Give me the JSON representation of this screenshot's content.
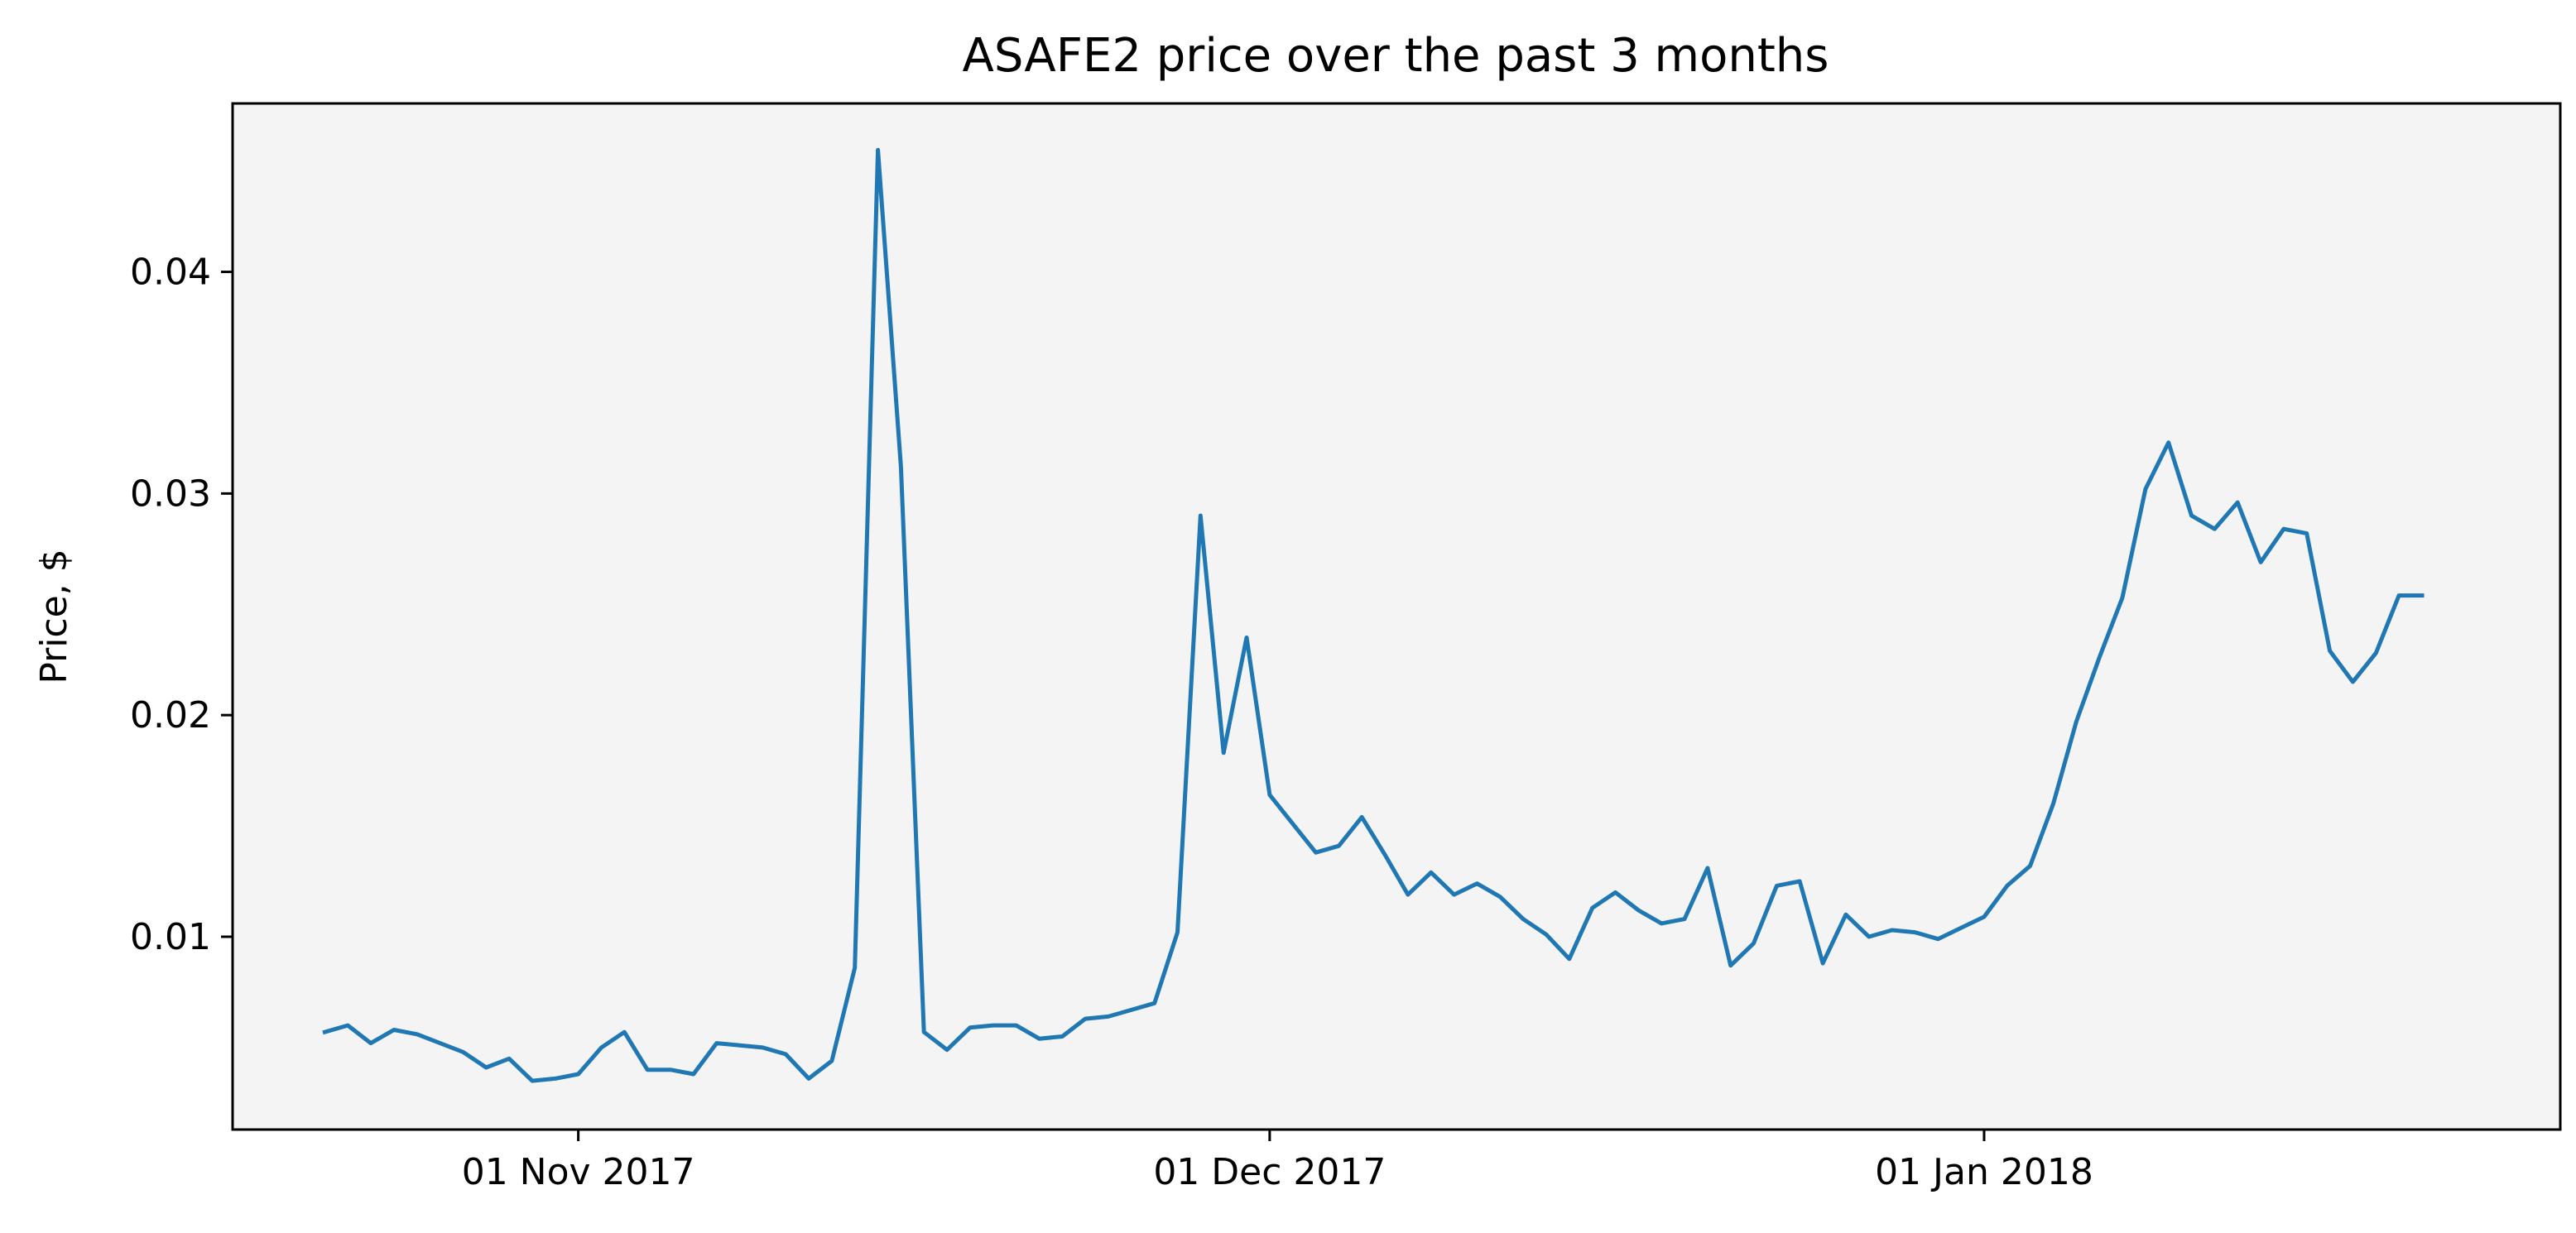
{
  "chart_data": {
    "type": "line",
    "title": "ASAFE2 price over the past 3 months",
    "xlabel": "",
    "ylabel": "Price, $",
    "ylim": [
      0.0013,
      0.0476
    ],
    "yticks": [
      0.01,
      0.02,
      0.03,
      0.04
    ],
    "ytick_labels": [
      "0.01",
      "0.02",
      "0.03",
      "0.04"
    ],
    "xlim": [
      "2017-10-17",
      "2018-01-26"
    ],
    "xticks": [
      "2017-11-01",
      "2017-12-01",
      "2018-01-01"
    ],
    "xtick_labels": [
      "01 Nov 2017",
      "01 Dec 2017",
      "01 Jan 2018"
    ],
    "grid": false,
    "colors": {
      "line": "#1f77b4",
      "plot_background": "#f4f4f4",
      "axes": "#000000"
    },
    "series": [
      {
        "x": [
          "2017-10-21",
          "2017-10-22",
          "2017-10-23",
          "2017-10-24",
          "2017-10-25",
          "2017-10-26",
          "2017-10-27",
          "2017-10-28",
          "2017-10-29",
          "2017-10-30",
          "2017-10-31",
          "2017-11-01",
          "2017-11-02",
          "2017-11-03",
          "2017-11-04",
          "2017-11-05",
          "2017-11-06",
          "2017-11-07",
          "2017-11-08",
          "2017-11-09",
          "2017-11-10",
          "2017-11-11",
          "2017-11-12",
          "2017-11-13",
          "2017-11-14",
          "2017-11-15",
          "2017-11-16",
          "2017-11-17",
          "2017-11-18",
          "2017-11-19",
          "2017-11-20",
          "2017-11-21",
          "2017-11-22",
          "2017-11-23",
          "2017-11-24",
          "2017-11-25",
          "2017-11-26",
          "2017-11-27",
          "2017-11-28",
          "2017-11-29",
          "2017-11-30",
          "2017-12-01",
          "2017-12-02",
          "2017-12-03",
          "2017-12-04",
          "2017-12-05",
          "2017-12-06",
          "2017-12-07",
          "2017-12-08",
          "2017-12-09",
          "2017-12-10",
          "2017-12-11",
          "2017-12-12",
          "2017-12-13",
          "2017-12-14",
          "2017-12-15",
          "2017-12-16",
          "2017-12-17",
          "2017-12-18",
          "2017-12-19",
          "2017-12-20",
          "2017-12-21",
          "2017-12-22",
          "2017-12-23",
          "2017-12-24",
          "2017-12-25",
          "2017-12-26",
          "2017-12-27",
          "2017-12-28",
          "2017-12-29",
          "2017-12-30",
          "2017-12-31",
          "2018-01-01",
          "2018-01-02",
          "2018-01-03",
          "2018-01-04",
          "2018-01-05",
          "2018-01-06",
          "2018-01-07",
          "2018-01-08",
          "2018-01-09",
          "2018-01-10",
          "2018-01-11",
          "2018-01-12",
          "2018-01-13",
          "2018-01-14",
          "2018-01-15",
          "2018-01-16",
          "2018-01-17",
          "2018-01-18",
          "2018-01-19",
          "2018-01-20"
        ],
        "y": [
          0.0057,
          0.006,
          0.0052,
          0.0058,
          0.0056,
          0.0052,
          0.0048,
          0.0041,
          0.0045,
          0.0035,
          0.0036,
          0.0038,
          0.005,
          0.0057,
          0.004,
          0.004,
          0.0038,
          0.0052,
          0.0051,
          0.005,
          0.0047,
          0.0036,
          0.0044,
          0.0086,
          0.0455,
          0.0312,
          0.0057,
          0.0049,
          0.0059,
          0.006,
          0.006,
          0.0054,
          0.0055,
          0.0063,
          0.0064,
          0.0067,
          0.007,
          0.0102,
          0.029,
          0.0183,
          0.0235,
          0.0164,
          0.0151,
          0.0138,
          0.0141,
          0.0154,
          0.0137,
          0.0119,
          0.0129,
          0.0119,
          0.0124,
          0.0118,
          0.0108,
          0.0101,
          0.009,
          0.0113,
          0.012,
          0.0112,
          0.0106,
          0.0108,
          0.0131,
          0.0087,
          0.0097,
          0.0123,
          0.0125,
          0.0088,
          0.011,
          0.01,
          0.0103,
          0.0102,
          0.0099,
          0.0104,
          0.0109,
          0.0123,
          0.0132,
          0.016,
          0.0197,
          0.0226,
          0.0253,
          0.0302,
          0.0323,
          0.029,
          0.0284,
          0.0296,
          0.0269,
          0.0284,
          0.0282,
          0.0229,
          0.0215,
          0.0228,
          0.0254,
          0.0254
        ]
      }
    ]
  }
}
